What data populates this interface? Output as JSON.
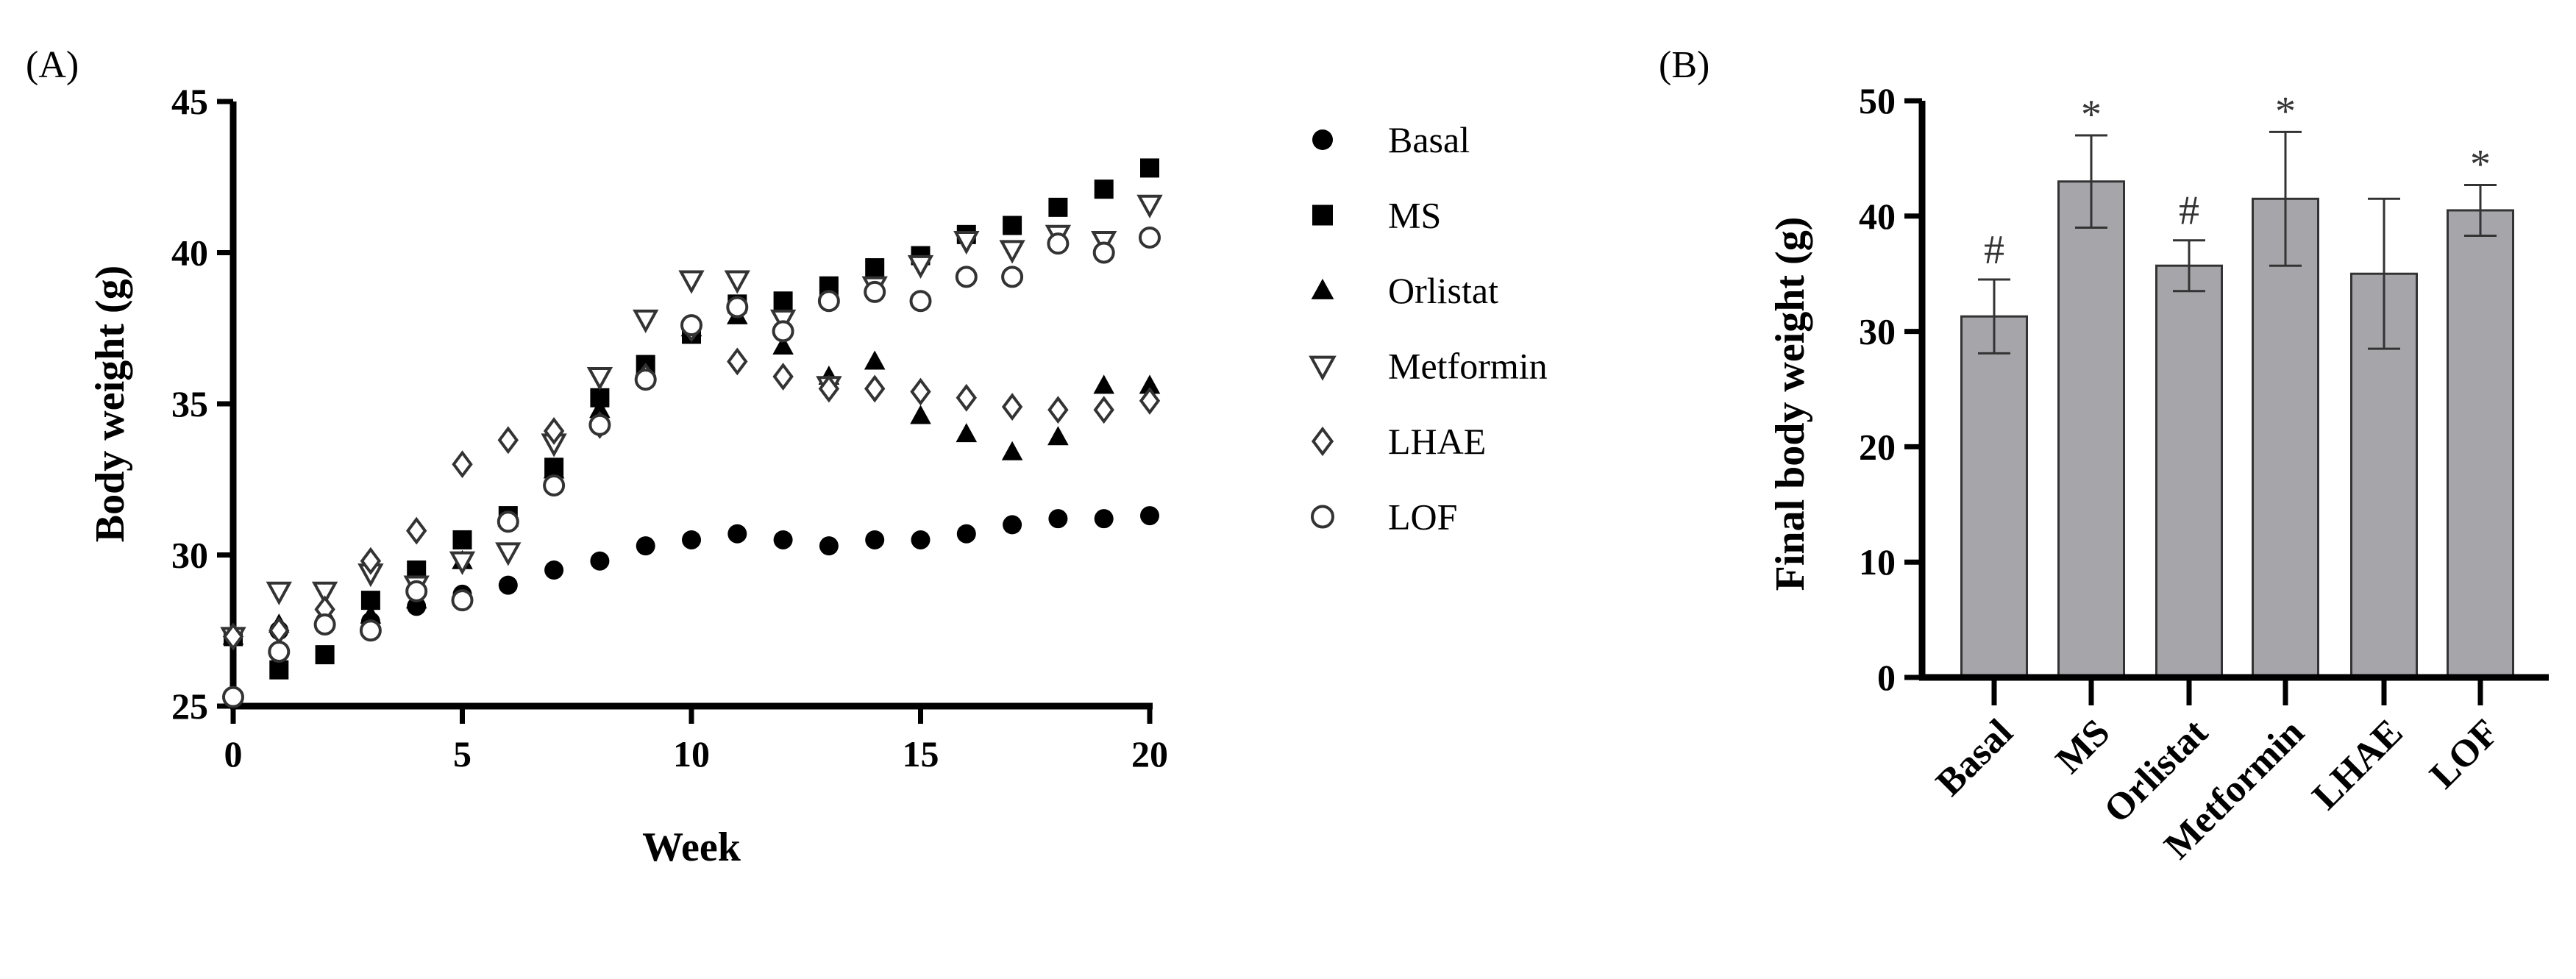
{
  "chart_data": [
    {
      "panel_label": "(A)",
      "type": "scatter",
      "xlabel": "Week",
      "ylabel": "Body weight (g)",
      "xlim": [
        0,
        20
      ],
      "ylim": [
        25,
        45
      ],
      "xticks": [
        "0",
        "5",
        "10",
        "15",
        "20"
      ],
      "yticks": [
        "25",
        "30",
        "35",
        "40",
        "45"
      ],
      "legend_position": "right",
      "x": [
        0,
        1,
        2,
        3,
        4,
        5,
        6,
        7,
        8,
        9,
        10,
        11,
        12,
        13,
        14,
        15,
        16,
        17,
        18,
        19,
        20
      ],
      "series": [
        {
          "name": "Basal",
          "marker": "filled-circle",
          "values": [
            27.3,
            27.5,
            27.8,
            27.8,
            28.3,
            28.7,
            29.0,
            29.5,
            29.8,
            30.3,
            30.5,
            30.7,
            30.5,
            30.3,
            30.5,
            30.5,
            30.7,
            31.0,
            31.2,
            31.2,
            31.3
          ]
        },
        {
          "name": "MS",
          "marker": "filled-square",
          "values": [
            27.3,
            26.2,
            26.7,
            28.5,
            29.5,
            30.5,
            31.3,
            32.9,
            35.2,
            36.3,
            37.3,
            38.3,
            38.4,
            38.9,
            39.5,
            39.9,
            40.6,
            40.9,
            41.5,
            42.1,
            42.8
          ]
        },
        {
          "name": "Orlistat",
          "marker": "filled-triangle",
          "values": [
            27.3,
            27.7,
            28.0,
            28.0,
            28.5,
            29.8,
            31.2,
            32.8,
            34.8,
            36.2,
            37.5,
            37.9,
            36.9,
            35.9,
            36.4,
            34.6,
            34.0,
            33.4,
            33.9,
            35.6,
            35.6
          ]
        },
        {
          "name": "Metformin",
          "marker": "open-down-triangle",
          "values": [
            27.3,
            28.8,
            28.8,
            29.4,
            29.0,
            29.8,
            30.1,
            33.7,
            35.9,
            37.8,
            39.1,
            39.1,
            37.8,
            35.6,
            38.9,
            39.6,
            40.4,
            40.1,
            40.6,
            40.4,
            41.6
          ]
        },
        {
          "name": "LHAE",
          "marker": "open-diamond",
          "values": [
            27.3,
            27.5,
            28.2,
            29.8,
            30.8,
            33.0,
            33.8,
            34.1,
            34.3,
            35.9,
            37.5,
            36.4,
            35.9,
            35.5,
            35.5,
            35.4,
            35.2,
            34.9,
            34.8,
            34.8,
            35.1
          ]
        },
        {
          "name": "LOF",
          "marker": "open-circle",
          "values": [
            25.3,
            26.8,
            27.7,
            27.5,
            28.8,
            28.5,
            31.1,
            32.3,
            34.3,
            35.8,
            37.6,
            38.2,
            37.4,
            38.4,
            38.7,
            38.4,
            39.2,
            39.2,
            40.3,
            40.0,
            40.5
          ]
        }
      ]
    },
    {
      "panel_label": "(B)",
      "type": "bar",
      "ylabel": "Final body weight (g)",
      "xlabel": "",
      "ylim": [
        0,
        50
      ],
      "yticks": [
        "0",
        "10",
        "20",
        "30",
        "40",
        "50"
      ],
      "categories": [
        "Basal",
        "MS",
        "Orlistat",
        "Metformin",
        "LHAE",
        "LOF"
      ],
      "values": [
        31.3,
        43.0,
        35.7,
        41.5,
        35.0,
        40.5
      ],
      "errors": [
        3.2,
        4.0,
        2.2,
        5.8,
        6.5,
        2.2
      ],
      "annotations": [
        "#",
        "*",
        "#",
        "*",
        "",
        "*"
      ],
      "bar_color": "#a6a5aa"
    }
  ]
}
